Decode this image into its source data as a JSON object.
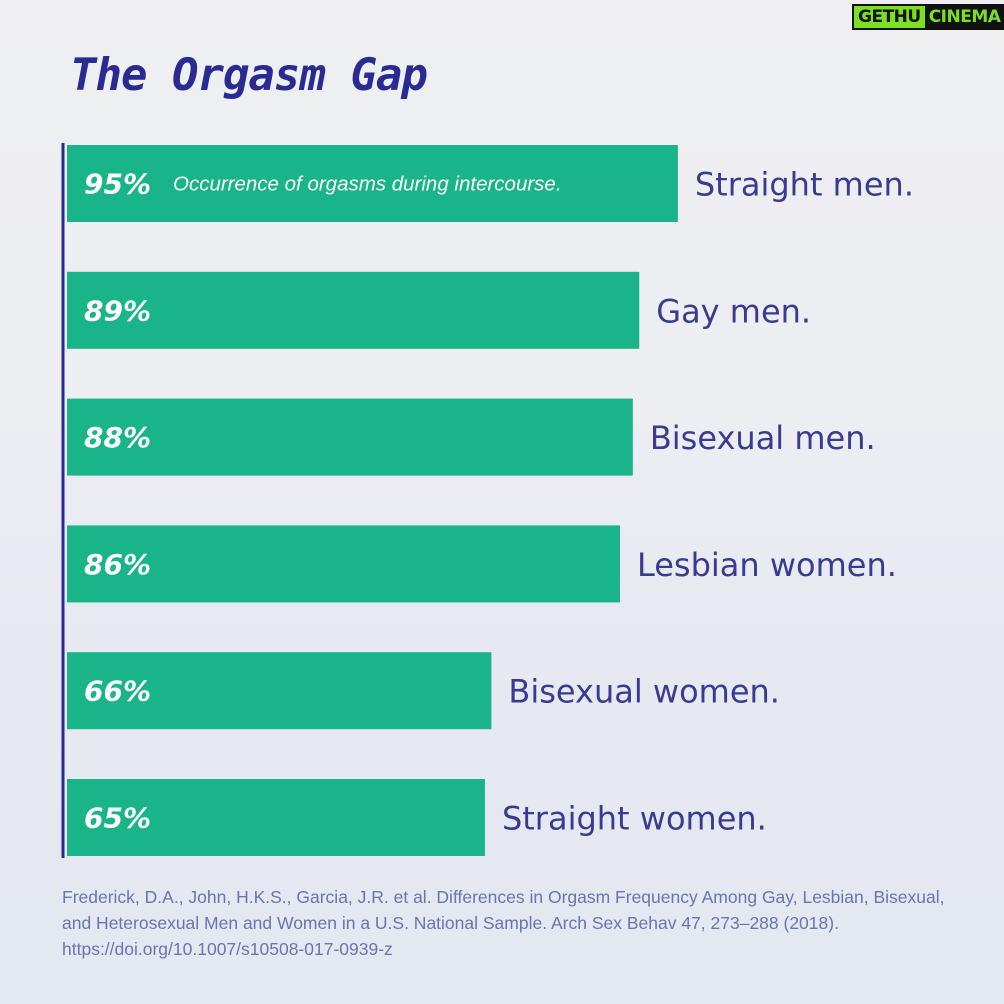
{
  "title": "The Orgasm Gap",
  "watermark": {
    "part1": "GETHU",
    "part2": "CINEMA"
  },
  "colors": {
    "bar": "#19b488",
    "axis": "#2a2a93",
    "category_label": "#3a3a8f",
    "value_label": "#ffffff",
    "annotation": "#ffffff"
  },
  "chart_data": {
    "type": "bar",
    "orientation": "horizontal",
    "title": "The Orgasm Gap",
    "categories": [
      "Straight men.",
      "Gay men.",
      "Bisexual men.",
      "Lesbian women.",
      "Bisexual women.",
      "Straight women."
    ],
    "values": [
      95,
      89,
      88,
      86,
      66,
      65
    ],
    "value_labels": [
      "95%",
      "89%",
      "88%",
      "86%",
      "66%",
      "65%"
    ],
    "unit": "%",
    "annotation": "Occurrence of orgasms during intercourse.",
    "annotation_on": "Straight men."
  },
  "source": "Frederick, D.A., John, H.K.S., Garcia, J.R. et al. Differences in Orgasm Frequency Among Gay, Lesbian, Bisexual, and Heterosexual Men and Women in a U.S. National Sample. Arch Sex Behav 47, 273–288 (2018). https://doi.org/10.1007/s10508-017-0939-z"
}
